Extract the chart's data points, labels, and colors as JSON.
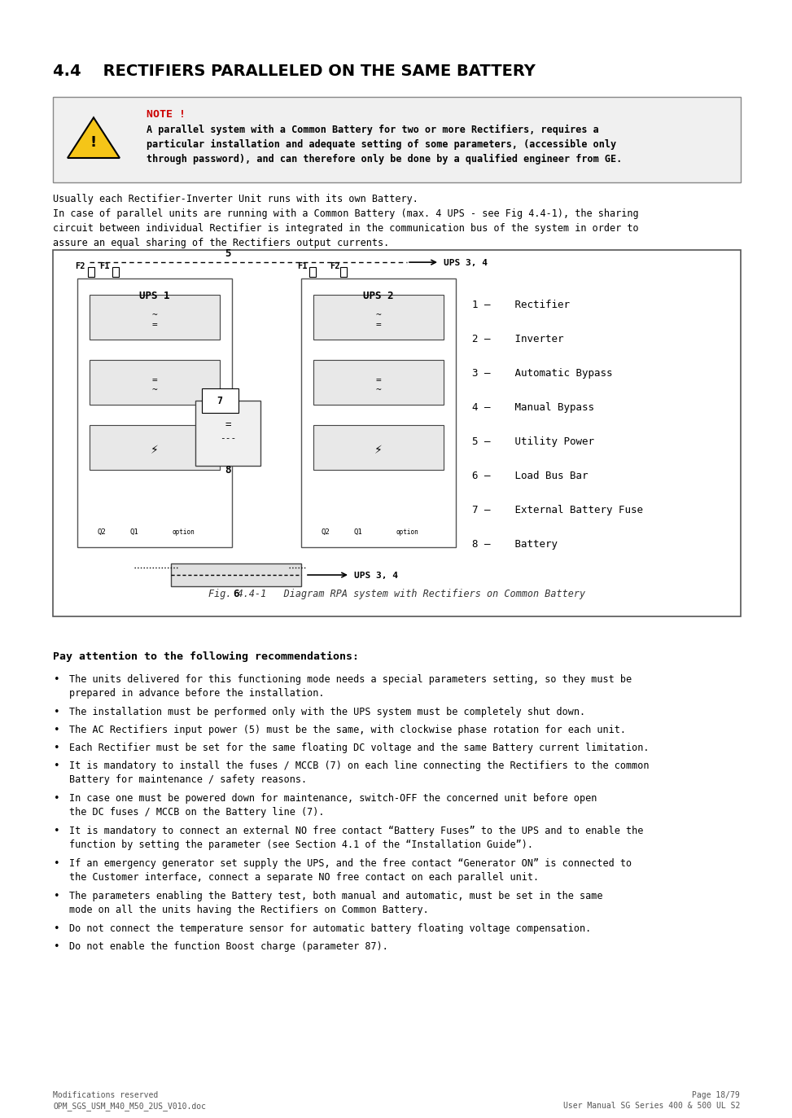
{
  "title": "4.4    RECTIFIERS PARALLELED ON THE SAME BATTERY",
  "note_label": "NOTE !",
  "note_text": "A parallel system with a Common Battery for two or more Rectifiers, requires a\nparticular installation and adequate setting of some parameters, (accessible only\nthrough password), and can therefore only be done by a qualified engineer from GE.",
  "intro_text1": "Usually each Rectifier-Inverter Unit runs with its own Battery.",
  "intro_text2": "In case of parallel units are running with a Common Battery (max. 4 UPS - see Fig 4.4-1), the sharing\ncircuit between individual Rectifier is integrated in the communication bus of the system in order to\nassure an equal sharing of the Rectifiers output currents.",
  "legend_items": [
    "1 –    Rectifier",
    "2 –    Inverter",
    "3 –    Automatic Bypass",
    "4 –    Manual Bypass",
    "5 –    Utility Power",
    "6 –    Load Bus Bar",
    "7 –    External Battery Fuse",
    "8 –    Battery"
  ],
  "fig_caption": "Fig. 4.4-1   Diagram RPA system with Rectifiers on Common Battery",
  "pay_attention_title": "Pay attention to the following recommendations:",
  "bullets": [
    "The units delivered for this functioning mode needs a special parameters setting, so they must be\nprepared in advance before the installation.",
    "The installation must be performed only with the UPS system must be completely shut down.",
    "The AC Rectifiers input power (5) must be the same, with clockwise phase rotation for each unit.",
    "Each Rectifier must be set for the same floating DC voltage and the same Battery current limitation.",
    "It is mandatory to install the fuses / MCCB (7) on each line connecting the Rectifiers to the common\nBattery for maintenance / safety reasons.",
    "In case one must be powered down for maintenance, switch-OFF the concerned unit before open\nthe DC fuses / MCCB on the Battery line (7).",
    "It is mandatory to connect an external NO free contact “Battery Fuses” to the UPS and to enable the\nfunction by setting the parameter (see Section 4.1 of the “Installation Guide”).",
    "If an emergency generator set supply the UPS, and the free contact “Generator ON” is connected to\nthe Customer interface, connect a separate NO free contact on each parallel unit.",
    "The parameters enabling the Battery test, both manual and automatic, must be set in the same\nmode on all the units having the Rectifiers on Common Battery.",
    "Do not connect the temperature sensor for automatic battery floating voltage compensation.",
    "Do not enable the function Boost charge (parameter 87)."
  ],
  "footer_left1": "Modifications reserved",
  "footer_left2": "OPM_SGS_USM_M40_M50_2US_V010.doc",
  "footer_right1": "Page 18/79",
  "footer_right2": "User Manual SG Series 400 & 500 UL S2",
  "bg_color": "#ffffff",
  "note_bg": "#f0f0f0",
  "note_border": "#000000",
  "note_color": "#cc0000",
  "text_color": "#000000"
}
